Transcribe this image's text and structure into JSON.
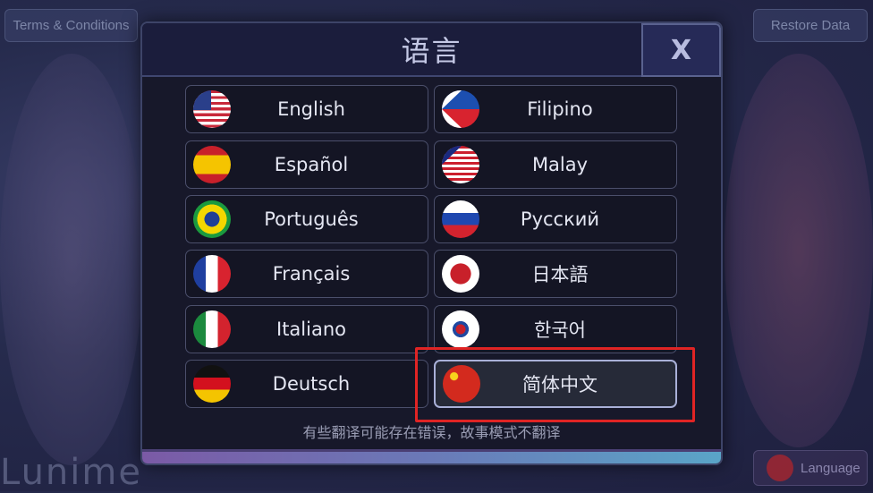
{
  "background": {
    "terms_label": "Terms & Conditions",
    "restore_label": "Restore Data",
    "language_label": "Language",
    "logo_text": "Lunime"
  },
  "dialog": {
    "title": "语言",
    "close_label": "X",
    "languages": [
      {
        "label": "English",
        "flag": "us-flag-icon"
      },
      {
        "label": "Filipino",
        "flag": "ph-flag-icon"
      },
      {
        "label": "Español",
        "flag": "es-flag-icon"
      },
      {
        "label": "Malay",
        "flag": "my-flag-icon"
      },
      {
        "label": "Português",
        "flag": "br-flag-icon"
      },
      {
        "label": "Русский",
        "flag": "ru-flag-icon"
      },
      {
        "label": "Français",
        "flag": "fr-flag-icon"
      },
      {
        "label": "日本語",
        "flag": "jp-flag-icon"
      },
      {
        "label": "Italiano",
        "flag": "it-flag-icon"
      },
      {
        "label": "한국어",
        "flag": "kr-flag-icon"
      },
      {
        "label": "Deutsch",
        "flag": "de-flag-icon"
      },
      {
        "label": "简体中文",
        "flag": "cn-flag-icon",
        "selected": true
      }
    ],
    "note": "有些翻译可能存在错误，故事模式不翻译"
  },
  "colors": {
    "highlight": "#e02424",
    "selected_border": "#a9b0d8"
  }
}
